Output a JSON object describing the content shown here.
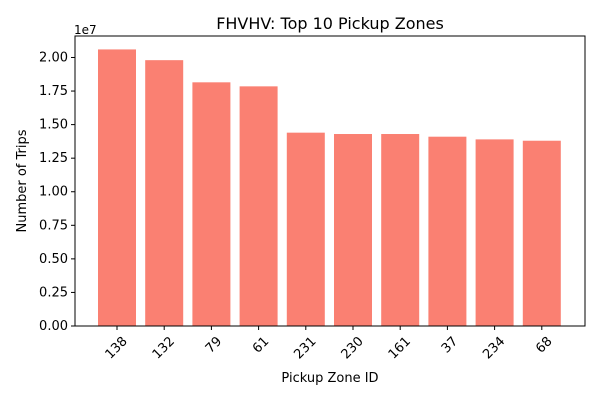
{
  "chart_data": {
    "type": "bar",
    "title": "FHVHV: Top 10 Pickup Zones",
    "xlabel": "Pickup Zone ID",
    "ylabel": "Number of Trips",
    "y_offset_label": "1e7",
    "categories": [
      "138",
      "132",
      "79",
      "61",
      "231",
      "230",
      "161",
      "37",
      "234",
      "68"
    ],
    "values": [
      20600000,
      19800000,
      18150000,
      17850000,
      14400000,
      14300000,
      14300000,
      14100000,
      13900000,
      13800000
    ],
    "ylim": [
      0,
      21600000
    ],
    "y_ticks": [
      0,
      2500000,
      5000000,
      7500000,
      10000000,
      12500000,
      15000000,
      17500000,
      20000000
    ],
    "y_tick_labels": [
      "0.00",
      "0.25",
      "0.50",
      "0.75",
      "1.00",
      "1.25",
      "1.50",
      "1.75",
      "2.00"
    ],
    "bar_color": "#fa8072",
    "grid": false,
    "legend": "none"
  }
}
